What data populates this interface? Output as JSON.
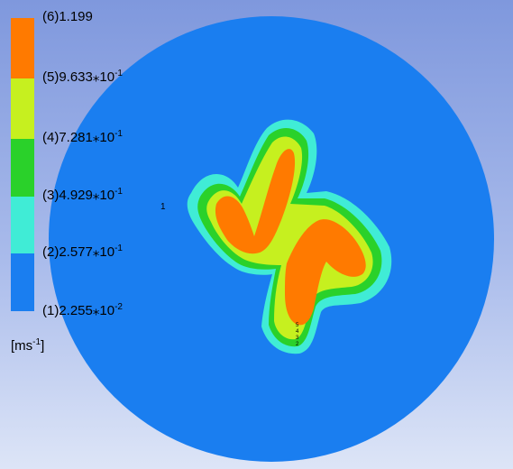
{
  "colors": {
    "band1": "#1a7ef0",
    "band2": "#40ecd6",
    "band3": "#2ad12a",
    "band4": "#c6f01f",
    "band5": "#ff7a00",
    "outline": "#000000"
  },
  "legend": {
    "labels": [
      {
        "prefix": "(6)1.199",
        "exp": ""
      },
      {
        "prefix": "(5)9.633⁎10",
        "exp": "-1"
      },
      {
        "prefix": "(4)7.281⁎10",
        "exp": "-1"
      },
      {
        "prefix": "(3)4.929⁎10",
        "exp": "-1"
      },
      {
        "prefix": "(2)2.577⁎10",
        "exp": "-1"
      },
      {
        "prefix": "(1)2.255⁎10",
        "exp": "-2"
      }
    ],
    "unit_base": "[ms",
    "unit_exp": "-1",
    "unit_close": "]"
  },
  "plot": {
    "marker_left": "1",
    "contour_markers": [
      "5",
      "4",
      "3",
      "2"
    ]
  }
}
